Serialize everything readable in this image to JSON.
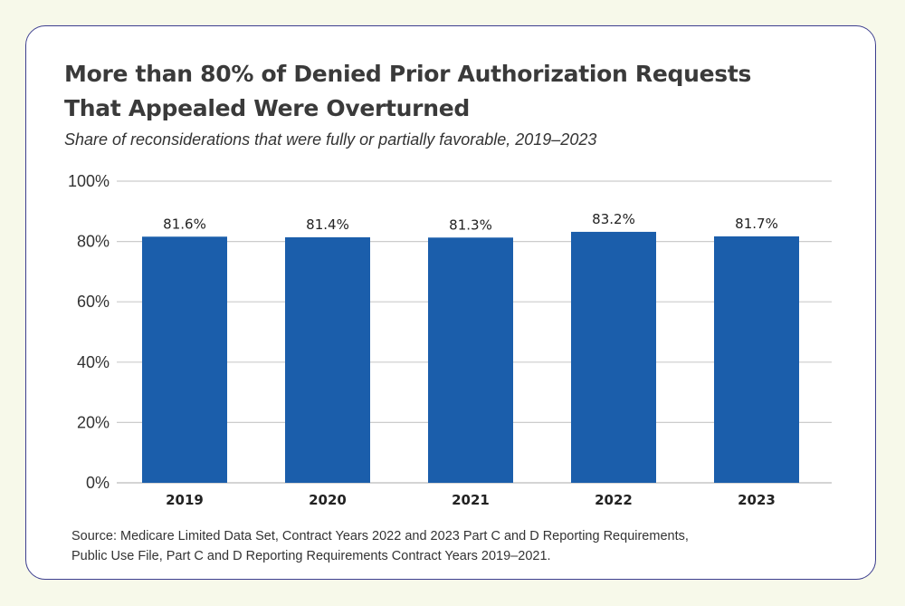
{
  "header": {
    "title": "More than 80% of Denied Prior Authorization Requests That Appealed Were Overturned",
    "subtitle": "Share of reconsiderations that were fully or partially favorable, 2019–2023"
  },
  "footer": {
    "source_line1": "Source: Medicare Limited Data Set, Contract Years 2022 and 2023 Part C and D Reporting Requirements,",
    "source_line2": "Public Use File, Part C and D Reporting Requirements Contract Years 2019–2021."
  },
  "colors": {
    "bar": "#1b5eab",
    "grid": "#cccccc",
    "border": "#3d3f8f"
  },
  "chart_data": {
    "type": "bar",
    "title": "More than 80% of Denied Prior Authorization Requests That Appealed Were Overturned",
    "subtitle": "Share of reconsiderations that were fully or partially favorable, 2019–2023",
    "xlabel": "",
    "ylabel": "",
    "categories": [
      "2019",
      "2020",
      "2021",
      "2022",
      "2023"
    ],
    "values": [
      81.6,
      81.4,
      81.3,
      83.2,
      81.7
    ],
    "data_labels": [
      "81.6%",
      "81.4%",
      "81.3%",
      "83.2%",
      "81.7%"
    ],
    "ylim": [
      0,
      100
    ],
    "yticks": [
      0,
      20,
      40,
      60,
      80,
      100
    ],
    "ytick_labels": [
      "0%",
      "20%",
      "40%",
      "60%",
      "80%",
      "100%"
    ],
    "grid": true,
    "legend": "none"
  }
}
